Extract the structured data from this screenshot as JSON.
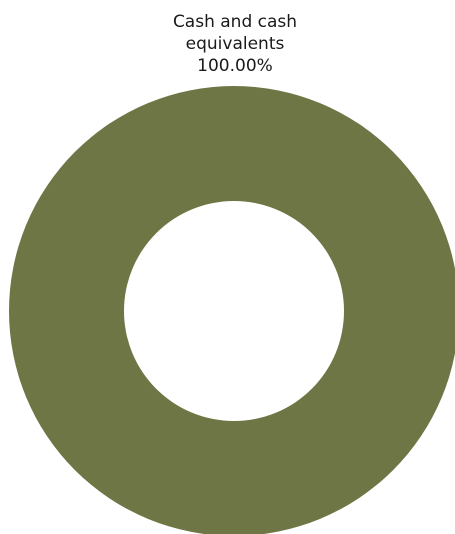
{
  "chart_data": {
    "type": "pie",
    "variant": "donut",
    "title": "",
    "slices": [
      {
        "label_lines": [
          "Cash and cash",
          "equivalents"
        ],
        "percent_label": "100.00%",
        "value": 100.0,
        "color": "#6e7645"
      }
    ],
    "legend": "none"
  }
}
